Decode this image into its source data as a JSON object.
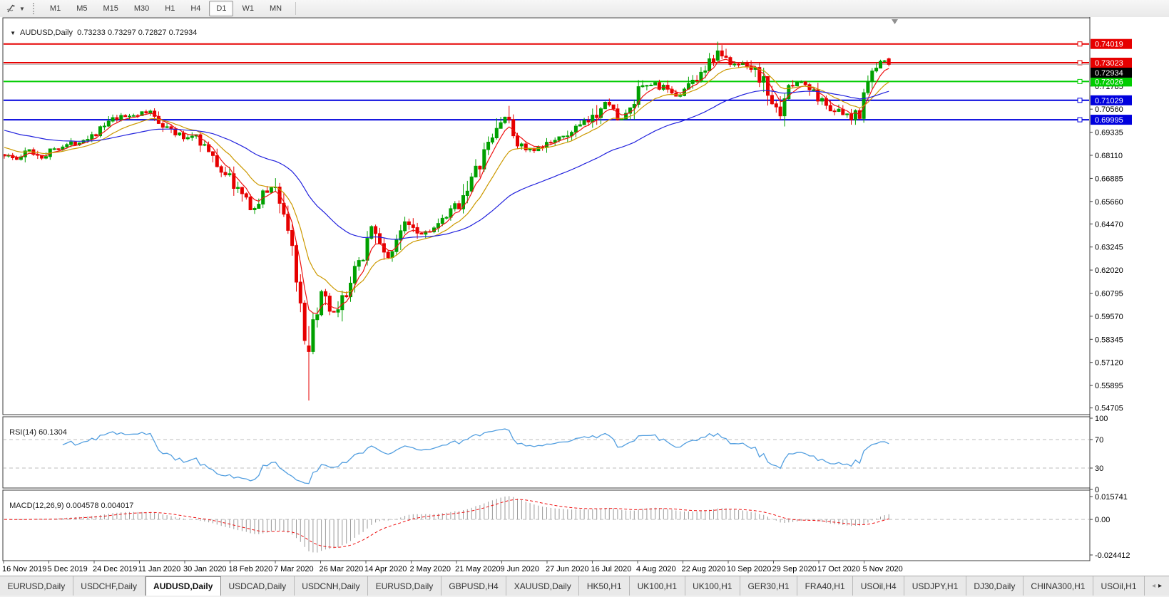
{
  "toolbar": {
    "timeframes": [
      "M1",
      "M5",
      "M15",
      "M30",
      "H1",
      "H4",
      "D1",
      "W1",
      "MN"
    ],
    "active_timeframe": "D1",
    "cursor_tool_caret": "▼"
  },
  "chart": {
    "dropdown_triangle": "▼",
    "symbol_period": "AUDUSD,Daily",
    "ohlc_text": "0.73233 0.73297 0.72827 0.72934"
  },
  "chart_data": {
    "type": "candlestick",
    "title": "AUDUSD,Daily",
    "x_labels": [
      "16 Nov 2019",
      "5 Dec 2019",
      "24 Dec 2019",
      "11 Jan 2020",
      "30 Jan 2020",
      "18 Feb 2020",
      "7 Mar 2020",
      "26 Mar 2020",
      "14 Apr 2020",
      "2 May 2020",
      "21 May 2020",
      "9 Jun 2020",
      "27 Jun 2020",
      "16 Jul 2020",
      "4 Aug 2020",
      "22 Aug 2020",
      "10 Sep 2020",
      "29 Sep 2020",
      "17 Oct 2020",
      "5 Nov 2020"
    ],
    "price_axis_ticks": [
      "0.71785",
      "0.70560",
      "0.69335",
      "0.68110",
      "0.66885",
      "0.65660",
      "0.64470",
      "0.63245",
      "0.62020",
      "0.60795",
      "0.59570",
      "0.58345",
      "0.57120",
      "0.55895",
      "0.54705"
    ],
    "price_range_approx": [
      0.545,
      0.7522
    ],
    "levels": [
      {
        "label": "0.74019",
        "price": 0.74019,
        "color": "#e60000"
      },
      {
        "label": "0.73023",
        "price": 0.73023,
        "color": "#e60000"
      },
      {
        "label": "0.72026",
        "price": 0.72026,
        "color": "#00cc00"
      },
      {
        "label": "0.71029",
        "price": 0.71029,
        "color": "#0000dd"
      },
      {
        "label": "0.69995",
        "price": 0.69995,
        "color": "#0000dd"
      }
    ],
    "current_price": {
      "label": "0.72934",
      "value": 0.72934
    },
    "candle_count": 213,
    "last_candle_ohlc": {
      "open": 0.73233,
      "high": 0.73297,
      "low": 0.72827,
      "close": 0.72934
    },
    "close_anchors": [
      [
        0,
        0.6815
      ],
      [
        3,
        0.6788
      ],
      [
        6,
        0.6838
      ],
      [
        9,
        0.6802
      ],
      [
        12,
        0.6848
      ],
      [
        16,
        0.6872
      ],
      [
        19,
        0.6896
      ],
      [
        22,
        0.6932
      ],
      [
        26,
        0.6998
      ],
      [
        30,
        0.7022
      ],
      [
        35,
        0.704
      ],
      [
        39,
        0.6958
      ],
      [
        43,
        0.69
      ],
      [
        46,
        0.6925
      ],
      [
        50,
        0.679
      ],
      [
        52,
        0.6736
      ],
      [
        54,
        0.6694
      ],
      [
        56,
        0.6628
      ],
      [
        58,
        0.6565
      ],
      [
        60,
        0.6525
      ],
      [
        62,
        0.6598
      ],
      [
        64,
        0.6645
      ],
      [
        65,
        0.6632
      ],
      [
        66,
        0.658
      ],
      [
        67,
        0.65
      ],
      [
        68,
        0.642
      ],
      [
        69,
        0.633
      ],
      [
        70,
        0.615
      ],
      [
        71,
        0.5985
      ],
      [
        72,
        0.58
      ],
      [
        73,
        0.577
      ],
      [
        74,
        0.59
      ],
      [
        75,
        0.6005
      ],
      [
        76,
        0.6075
      ],
      [
        78,
        0.5975
      ],
      [
        80,
        0.5968
      ],
      [
        82,
        0.609
      ],
      [
        84,
        0.618
      ],
      [
        86,
        0.629
      ],
      [
        88,
        0.644
      ],
      [
        90,
        0.633
      ],
      [
        92,
        0.6272
      ],
      [
        94,
        0.633
      ],
      [
        96,
        0.6475
      ],
      [
        98,
        0.644
      ],
      [
        100,
        0.6395
      ],
      [
        102,
        0.642
      ],
      [
        104,
        0.6435
      ],
      [
        106,
        0.648
      ],
      [
        108,
        0.6535
      ],
      [
        109,
        0.6562
      ],
      [
        111,
        0.665
      ],
      [
        113,
        0.6718
      ],
      [
        115,
        0.6815
      ],
      [
        117,
        0.6905
      ],
      [
        119,
        0.6995
      ],
      [
        120,
        0.702
      ],
      [
        121,
        0.6962
      ],
      [
        123,
        0.688
      ],
      [
        125,
        0.6845
      ],
      [
        127,
        0.6832
      ],
      [
        129,
        0.685
      ],
      [
        130,
        0.6868
      ],
      [
        132,
        0.6905
      ],
      [
        134,
        0.6898
      ],
      [
        136,
        0.6942
      ],
      [
        138,
        0.6968
      ],
      [
        141,
        0.7
      ],
      [
        143,
        0.7082
      ],
      [
        144,
        0.7105
      ],
      [
        146,
        0.7038
      ],
      [
        148,
        0.7002
      ],
      [
        150,
        0.7038
      ],
      [
        152,
        0.7145
      ],
      [
        154,
        0.7178
      ],
      [
        156,
        0.7192
      ],
      [
        158,
        0.7165
      ],
      [
        160,
        0.7128
      ],
      [
        162,
        0.7142
      ],
      [
        163,
        0.7158
      ],
      [
        165,
        0.7205
      ],
      [
        167,
        0.7255
      ],
      [
        169,
        0.7298
      ],
      [
        171,
        0.7365
      ],
      [
        172,
        0.7342
      ],
      [
        173,
        0.7315
      ],
      [
        174,
        0.7288
      ],
      [
        176,
        0.7295
      ],
      [
        177,
        0.7308
      ],
      [
        179,
        0.7282
      ],
      [
        180,
        0.7258
      ],
      [
        182,
        0.7195
      ],
      [
        184,
        0.7102
      ],
      [
        185,
        0.7045
      ],
      [
        186,
        0.7062
      ],
      [
        187,
        0.7135
      ],
      [
        189,
        0.7182
      ],
      [
        190,
        0.7205
      ],
      [
        192,
        0.7185
      ],
      [
        193,
        0.7162
      ],
      [
        195,
        0.7122
      ],
      [
        196,
        0.7095
      ],
      [
        198,
        0.7062
      ],
      [
        200,
        0.704
      ],
      [
        202,
        0.7012
      ],
      [
        203,
        0.6998
      ],
      [
        204,
        0.7038
      ],
      [
        205,
        0.7048
      ],
      [
        206,
        0.717
      ],
      [
        207,
        0.7202
      ],
      [
        208,
        0.7245
      ],
      [
        209,
        0.7272
      ],
      [
        210,
        0.7298
      ],
      [
        211,
        0.7322
      ],
      [
        212,
        0.72934
      ]
    ],
    "special_candles": [
      {
        "i": 73,
        "o": 0.58,
        "h": 0.5905,
        "l": 0.551,
        "c": 0.577
      },
      {
        "i": 171,
        "o": 0.7315,
        "h": 0.7414,
        "l": 0.73,
        "c": 0.7365
      },
      {
        "i": 212,
        "o": 0.73233,
        "h": 0.73297,
        "l": 0.72827,
        "c": 0.72934
      }
    ],
    "moving_averages": [
      {
        "name": "fast-ma",
        "period": 5,
        "color": "#ee1111",
        "seed": 0.6815
      },
      {
        "name": "medium-ma",
        "period": 13,
        "color": "#cc9900",
        "seed": 0.686
      },
      {
        "name": "slow-ma",
        "period": 45,
        "color": "#2222dd",
        "seed": 0.695
      }
    ],
    "colors": {
      "bull": "#00a000",
      "bear": "#e60000",
      "background": "#ffffff"
    }
  },
  "indicators": {
    "rsi": {
      "label": "RSI(14)",
      "value": "60.1304",
      "period": 14,
      "axis_ticks": [
        "100",
        "70",
        "30",
        "0"
      ],
      "level_lines": [
        70,
        30
      ],
      "line_color": "#539fe0"
    },
    "macd": {
      "label": "MACD(12,26,9)",
      "values": "0.004578 0.004017",
      "fast": 12,
      "slow": 26,
      "signal": 9,
      "axis_ticks": [
        "0.015741",
        "0.00",
        "-0.024412"
      ],
      "axis_tick_values": [
        0.015741,
        0.0,
        -0.024412
      ],
      "histogram_color": "#9a9a9a",
      "signal_color": "#ee1111"
    }
  },
  "tabs": {
    "active_index": 2,
    "items": [
      "EURUSD,Daily",
      "USDCHF,Daily",
      "AUDUSD,Daily",
      "USDCAD,Daily",
      "USDCNH,Daily",
      "EURUSD,Daily",
      "GBPUSD,H4",
      "XAUUSD,Daily",
      "HK50,H1",
      "UK100,H1",
      "UK100,H1",
      "GER30,H1",
      "FRA40,H1",
      "USOil,H4",
      "USDJPY,H1",
      "DJ30,Daily",
      "CHINA300,H1",
      "USOil,H1"
    ],
    "scroll_left": "◂",
    "scroll_right": "▸"
  }
}
